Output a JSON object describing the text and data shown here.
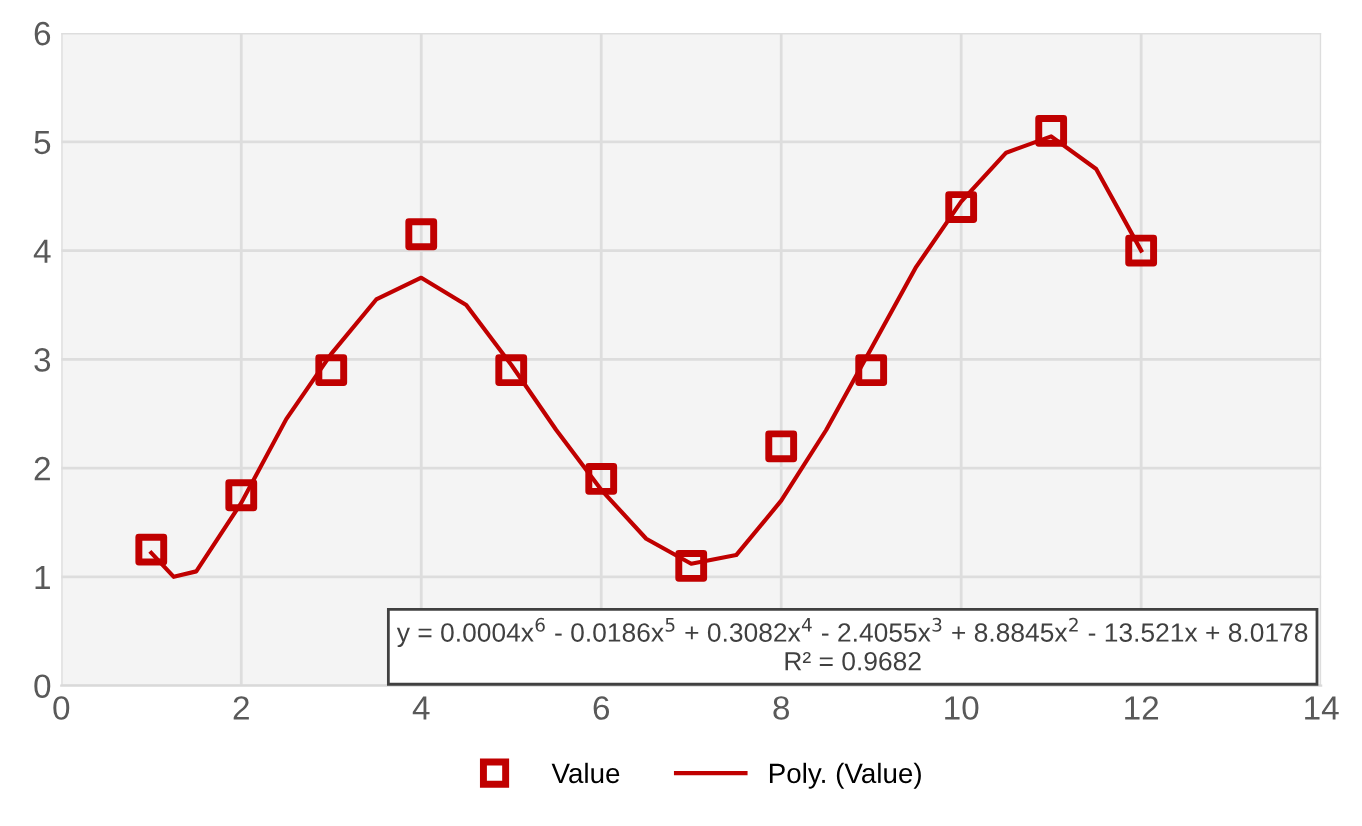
{
  "chart_data": {
    "type": "scatter",
    "xlim": [
      0,
      14
    ],
    "xticks": [
      0,
      2,
      4,
      6,
      8,
      10,
      12,
      14
    ],
    "ylim": [
      0,
      6
    ],
    "yticks": [
      0,
      1,
      2,
      3,
      4,
      5,
      6
    ],
    "grid": true,
    "legend": "bottom",
    "series": [
      {
        "name": "Value",
        "marker": "square",
        "color": "#c00000",
        "x": [
          1,
          2,
          3,
          4,
          5,
          6,
          7,
          8,
          9,
          10,
          11,
          12
        ],
        "values": [
          1.25,
          1.75,
          2.9,
          4.15,
          2.9,
          1.9,
          1.1,
          2.2,
          2.9,
          4.4,
          5.1,
          4.0
        ]
      },
      {
        "name": "Poly. (Value)",
        "type": "line",
        "marker": "none",
        "line_style": "solid",
        "color": "#c00000",
        "x": [
          1,
          1.25,
          1.5,
          2,
          2.5,
          3,
          3.5,
          4,
          4.5,
          5,
          5.5,
          6,
          6.5,
          7,
          7.5,
          8,
          8.5,
          9,
          9.5,
          10,
          10.5,
          11,
          11.5,
          12
        ],
        "values": [
          1.22,
          1.0,
          1.05,
          1.68,
          2.45,
          3.05,
          3.55,
          3.75,
          3.5,
          2.95,
          2.35,
          1.8,
          1.35,
          1.12,
          1.2,
          1.7,
          2.35,
          3.1,
          3.85,
          4.45,
          4.9,
          5.05,
          4.75,
          4.0
        ]
      }
    ],
    "annotations": [
      "y = 0.0004x$^{6}$ - 0.0186x$^{5}$ + 0.3082x$^{4}$ - 2.4055x$^{3}$ + 8.8845x$^{2}$ - 13.521x + 8.0178\nR² = 0.9682"
    ]
  }
}
